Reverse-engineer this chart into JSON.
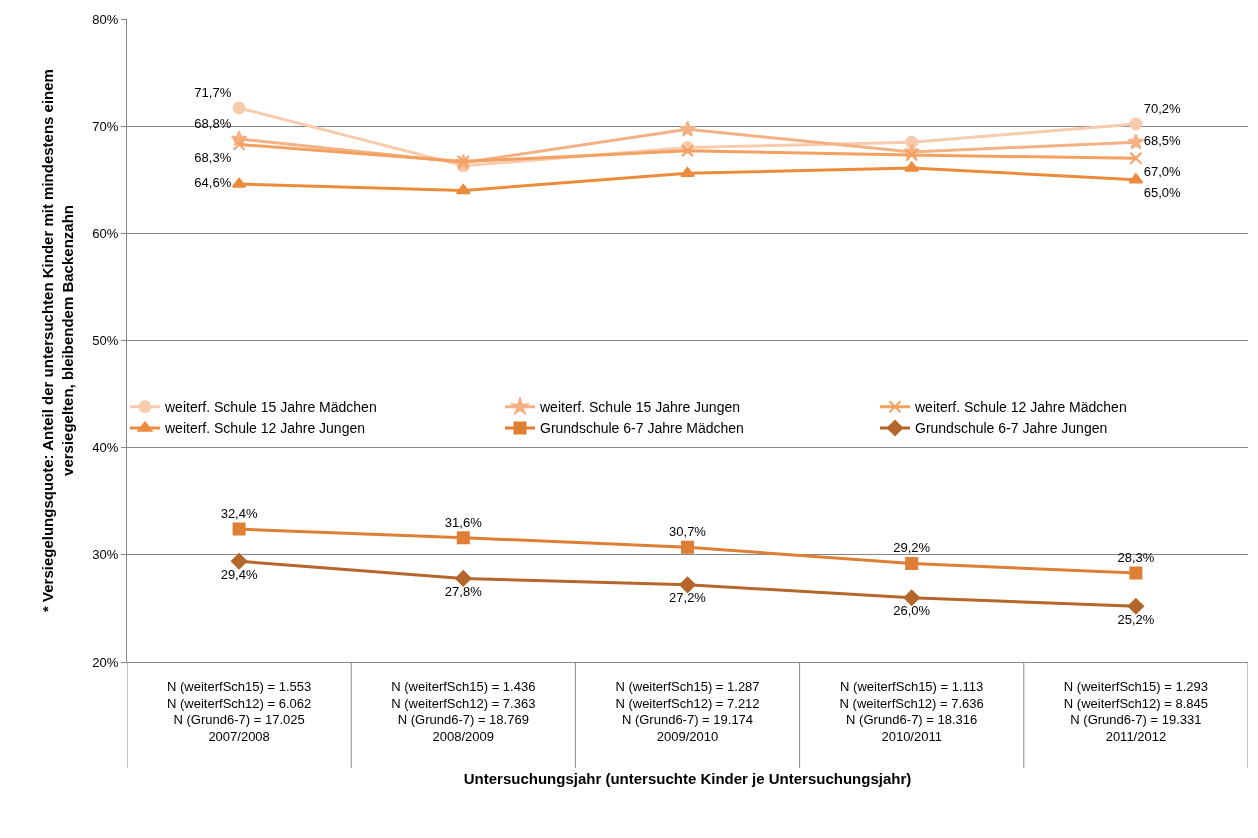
{
  "chart_data": {
    "type": "line",
    "xlabel": "Untersuchungsjahr (untersuchte Kinder je Untersuchungsjahr)",
    "ylabel": "* Versiegelungsquote: Anteil der untersuchten Kinder mit mindestens einem\nversiegelten, bleibendem Backenzahn",
    "categories": [
      "N (weiterfSch15) = 1.553\nN (weiterfSch12) = 6.062\nN (Grund6-7) = 17.025\n2007/2008",
      "N (weiterfSch15) = 1.436\nN (weiterfSch12) = 7.363\nN (Grund6-7) = 18.769\n2008/2009",
      "N (weiterfSch15) = 1.287\nN (weiterfSch12) = 7.212\nN (Grund6-7) = 19.174\n2009/2010",
      "N (weiterfSch15) = 1.113\nN (weiterfSch12) = 7.636\nN (Grund6-7) = 18.316\n2010/2011",
      "N (weiterfSch15) = 1.293\nN (weiterfSch12) = 8.845\nN (Grund6-7) = 19.331\n2011/2012"
    ],
    "series": [
      {
        "name": "weiterf. Schule 15 Jahre Mädchen",
        "color": "#f8cbad",
        "marker": "circle",
        "values": [
          71.7,
          66.3,
          68.0,
          68.5,
          70.2
        ],
        "value_labels": [
          "71,7%",
          null,
          null,
          null,
          "70,2%"
        ]
      },
      {
        "name": "weiterf. Schule 15 Jahre Jungen",
        "color": "#f4b183",
        "marker": "star",
        "values": [
          68.8,
          66.6,
          69.7,
          67.6,
          68.5
        ],
        "value_labels": [
          "68,8%",
          null,
          null,
          null,
          "68,5%"
        ]
      },
      {
        "name": "weiterf. Schule 12 Jahre Mädchen",
        "color": "#f4a060",
        "marker": "cross",
        "values": [
          68.3,
          66.7,
          67.7,
          67.3,
          67.0
        ],
        "value_labels": [
          "68,3%",
          null,
          null,
          null,
          "67,0%"
        ]
      },
      {
        "name": "weiterf. Schule 12 Jahre Jungen",
        "color": "#ed8b3c",
        "marker": "triangle",
        "values": [
          64.6,
          64.0,
          65.6,
          66.1,
          65.0
        ],
        "value_labels": [
          "64,6%",
          null,
          null,
          null,
          "65,0%"
        ]
      },
      {
        "name": "Grundschule 6-7 Jahre Mädchen",
        "color": "#df7f35",
        "marker": "square",
        "values": [
          32.4,
          31.6,
          30.7,
          29.2,
          28.3
        ],
        "value_labels": [
          "32,4%",
          "31,6%",
          "30,7%",
          "29,2%",
          "28,3%"
        ]
      },
      {
        "name": "Grundschule 6-7 Jahre Jungen",
        "color": "#b4662b",
        "marker": "diamond",
        "values": [
          29.4,
          27.8,
          27.2,
          26.0,
          25.2
        ],
        "value_labels": [
          "29,4%",
          "27,8%",
          "27,2%",
          "26,0%",
          "25,2%"
        ]
      }
    ],
    "ylim": [
      20,
      80
    ],
    "yticks": [
      {
        "value": 20,
        "label": "20%"
      },
      {
        "value": 30,
        "label": "30%"
      },
      {
        "value": 40,
        "label": "40%"
      },
      {
        "value": 50,
        "label": "50%"
      },
      {
        "value": 60,
        "label": "60%"
      },
      {
        "value": 70,
        "label": "70%"
      },
      {
        "value": 80,
        "label": "80%"
      }
    ],
    "grid": "y",
    "legend": "center",
    "line_style": "solid"
  }
}
